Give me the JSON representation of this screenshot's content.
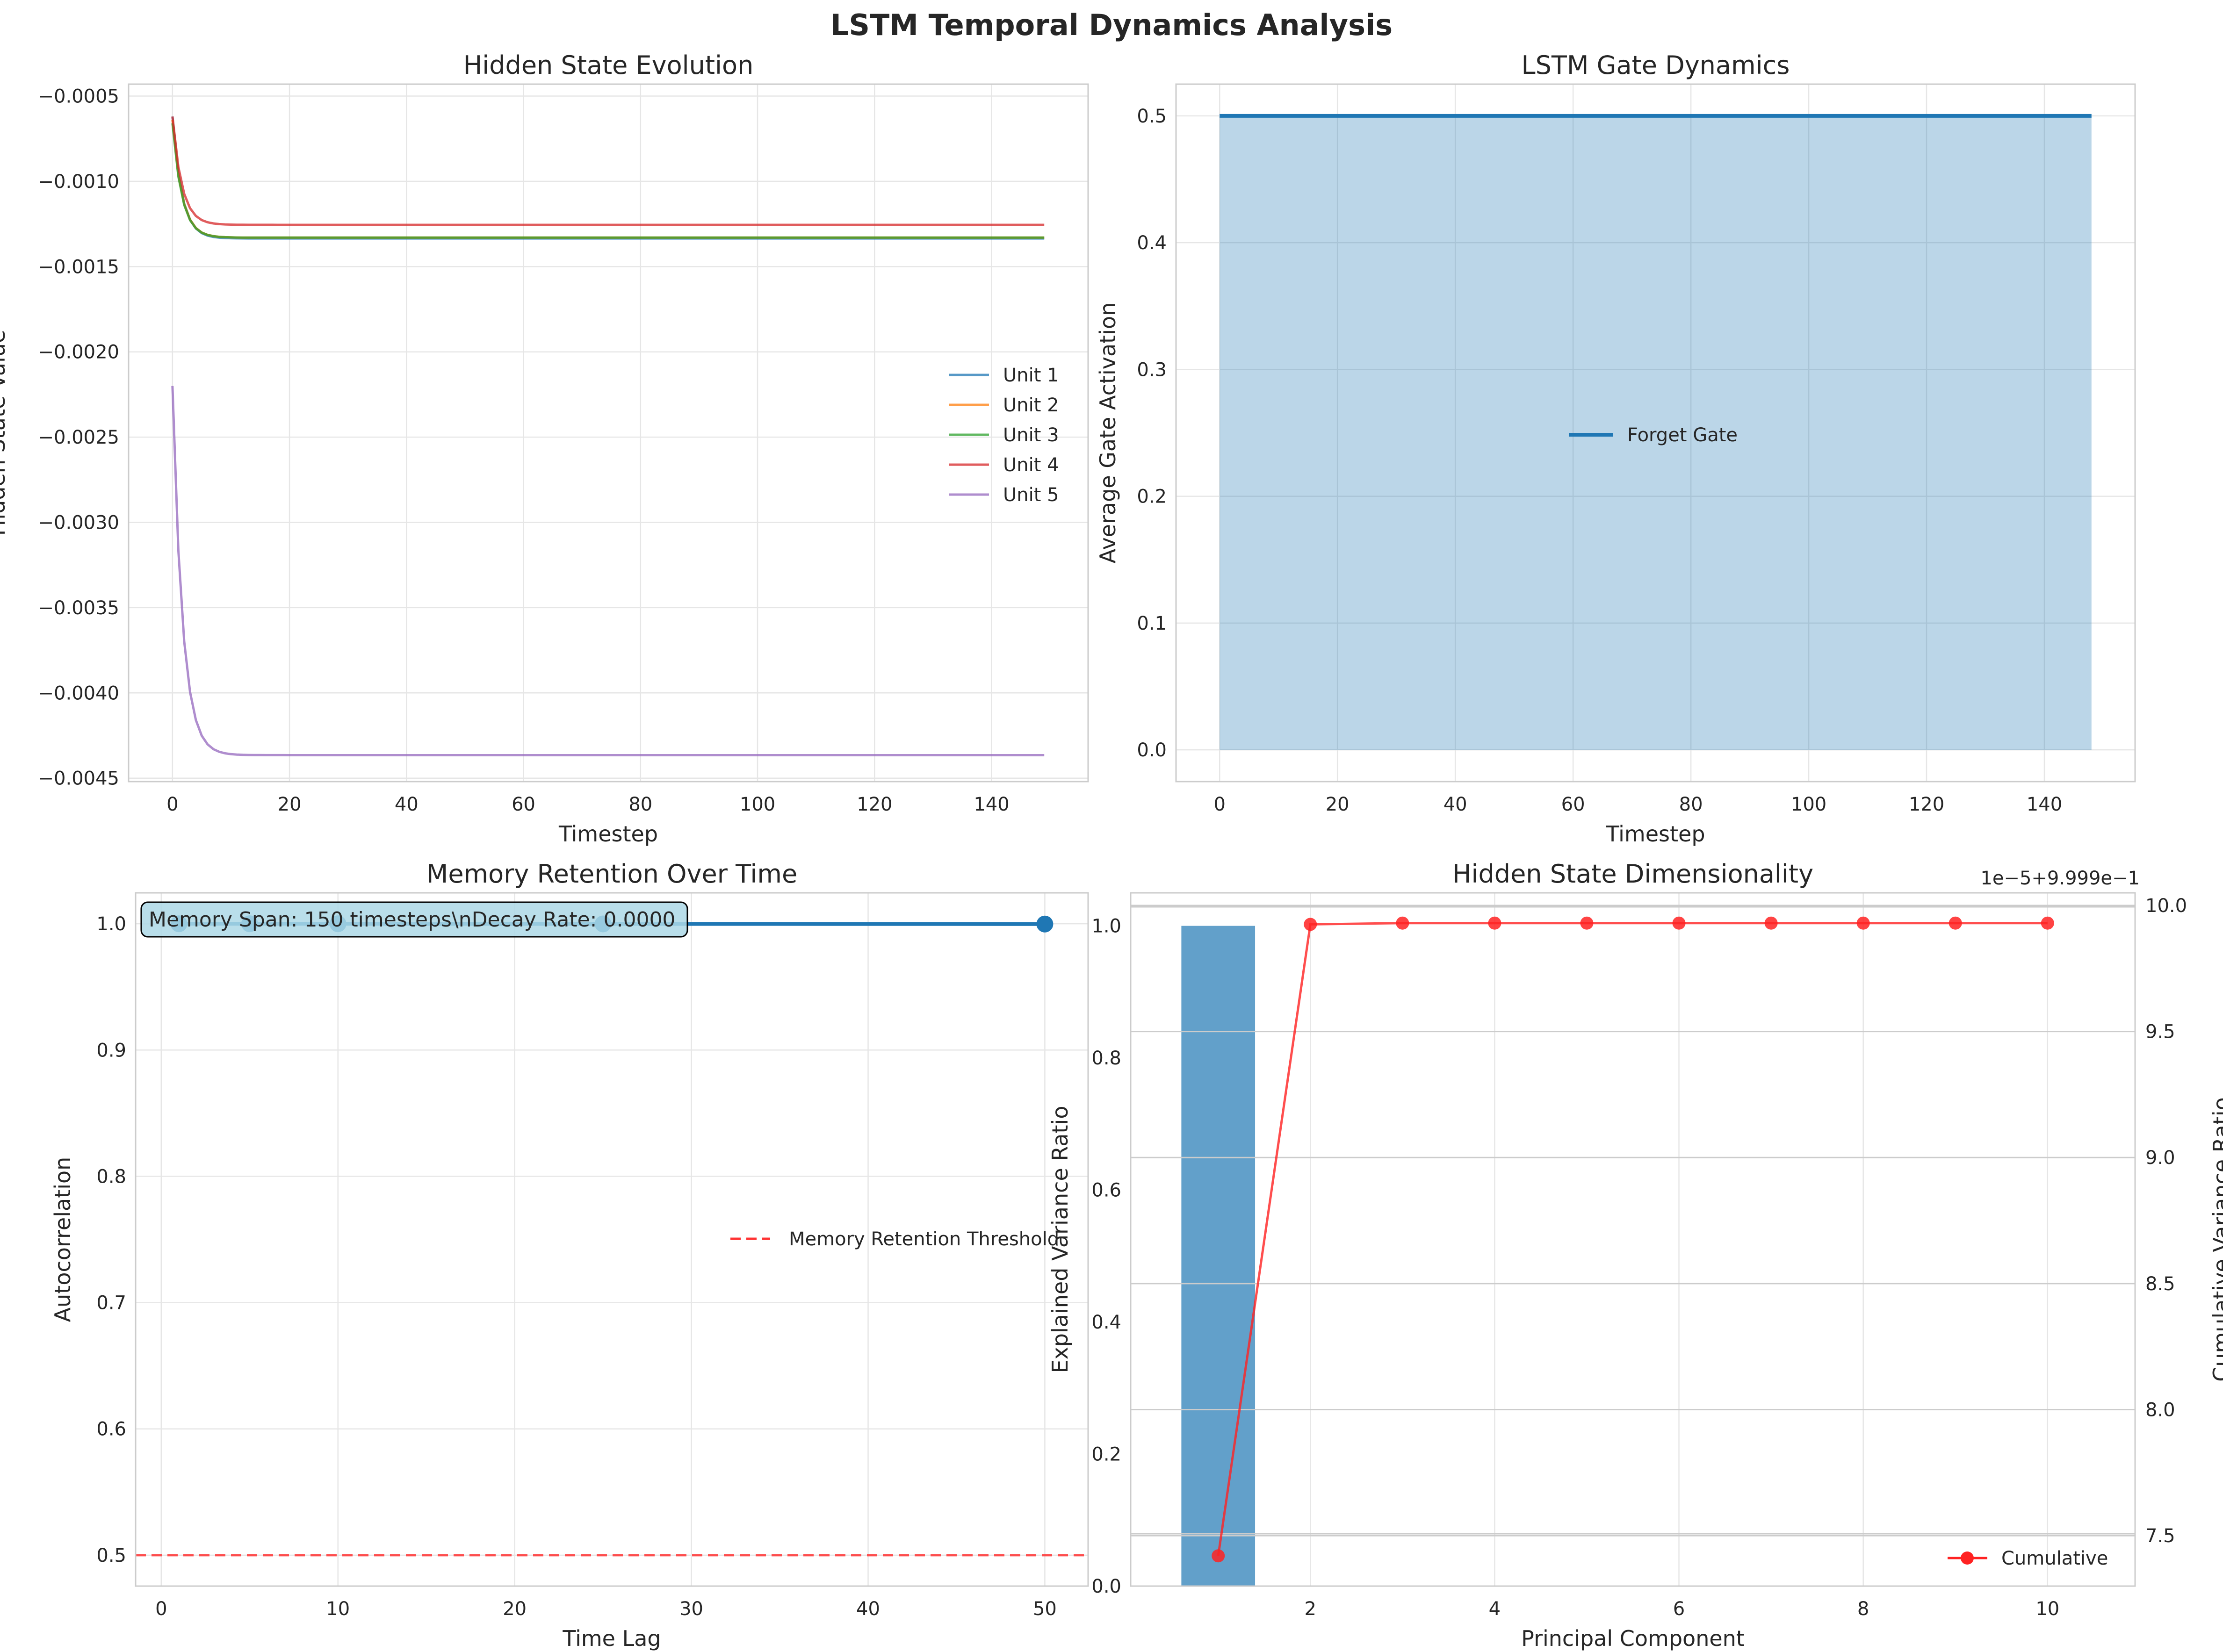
{
  "figure": {
    "suptitle": "LSTM Temporal Dynamics Analysis"
  },
  "chart_data": [
    {
      "type": "line",
      "title": "Hidden State Evolution",
      "xlabel": "Timestep",
      "ylabel": "Hidden State Value",
      "xlim": [
        -7.5,
        156.5
      ],
      "ylim": [
        -0.00452,
        -0.00043
      ],
      "x_ticks": [
        "0",
        "20",
        "40",
        "60",
        "80",
        "100",
        "120",
        "140"
      ],
      "y_ticks": [
        "−0.0005",
        "−0.0010",
        "−0.0015",
        "−0.0020",
        "−0.0025",
        "−0.0030",
        "−0.0035",
        "−0.0040",
        "−0.0045"
      ],
      "timesteps": 150,
      "series": [
        {
          "name": "Unit 1",
          "color": "#1f77b4",
          "start": -0.00062,
          "end": -0.001335,
          "decay_tau": 1.6
        },
        {
          "name": "Unit 2",
          "color": "#ff7f0e",
          "start": -0.00064,
          "end": -0.00133,
          "decay_tau": 1.6
        },
        {
          "name": "Unit 3",
          "color": "#2ca02c",
          "start": -0.00066,
          "end": -0.00133,
          "decay_tau": 1.6
        },
        {
          "name": "Unit 4",
          "color": "#d62728",
          "start": -0.00062,
          "end": -0.001255,
          "decay_tau": 1.6
        },
        {
          "name": "Unit 5",
          "color": "#9467bd",
          "start": -0.0022,
          "end": -0.004365,
          "decay_tau": 1.7
        }
      ],
      "legend": "center-right"
    },
    {
      "type": "area",
      "title": "LSTM Gate Dynamics",
      "xlabel": "Timestep",
      "ylabel": "Average Gate Activation",
      "xlim": [
        -7.4,
        155.4
      ],
      "ylim": [
        -0.025,
        0.525
      ],
      "x_ticks": [
        "0",
        "20",
        "40",
        "60",
        "80",
        "100",
        "120",
        "140"
      ],
      "y_ticks": [
        "0.0",
        "0.1",
        "0.2",
        "0.3",
        "0.4",
        "0.5"
      ],
      "series": [
        {
          "name": "Forget Gate",
          "color": "#1f77b4",
          "x_range": [
            0,
            148
          ],
          "value": 0.5
        }
      ],
      "legend": "center"
    },
    {
      "type": "line",
      "title": "Memory Retention Over Time",
      "xlabel": "Time Lag",
      "ylabel": "Autocorrelation",
      "xlim": [
        -1.45,
        52.45
      ],
      "ylim": [
        0.4755,
        1.0245
      ],
      "x_ticks": [
        "0",
        "10",
        "20",
        "30",
        "40",
        "50"
      ],
      "y_ticks": [
        "0.5",
        "0.6",
        "0.7",
        "0.8",
        "0.9",
        "1.0"
      ],
      "series": [
        {
          "name": "Autocorrelation",
          "color": "#1f77b4",
          "x": [
            1,
            5,
            10,
            25,
            50
          ],
          "y": [
            1.0,
            1.0,
            1.0,
            0.9999,
            0.9998
          ]
        }
      ],
      "threshold": {
        "name": "Memory Retention Threshold",
        "value": 0.5,
        "color": "#ff3333"
      },
      "annotation": "Memory Span: 150 timesteps\\nDecay Rate: 0.0000",
      "legend": "center-right"
    },
    {
      "type": "bar",
      "title": "Hidden State Dimensionality",
      "xlabel": "Principal Component",
      "ylabel": "Explained Variance Ratio",
      "ylabel_right": "Cumulative Variance Ratio",
      "offset_text": "1e−5+9.999e−1",
      "xlim": [
        0.05,
        10.95
      ],
      "ylim": [
        0.0,
        1.05
      ],
      "y2lim": [
        7.3,
        10.05
      ],
      "x_ticks": [
        "2",
        "4",
        "6",
        "8",
        "10"
      ],
      "y_ticks": [
        "0.0",
        "0.2",
        "0.4",
        "0.6",
        "0.8",
        "1.0"
      ],
      "y2_ticks": [
        "7.5",
        "8.0",
        "8.5",
        "9.0",
        "9.5",
        "10.0"
      ],
      "bars": {
        "categories": [
          1,
          2,
          3,
          4,
          5,
          6,
          7,
          8,
          9,
          10
        ],
        "values": [
          1.0,
          0,
          0,
          0,
          0,
          0,
          0,
          0,
          0,
          0
        ],
        "color": "#1f77b4"
      },
      "cumulative": {
        "name": "Cumulative",
        "color": "#ff2222",
        "x": [
          1,
          2,
          3,
          4,
          5,
          6,
          7,
          8,
          9,
          10
        ],
        "y": [
          7.42,
          9.925,
          9.93,
          9.93,
          9.93,
          9.93,
          9.93,
          9.93,
          9.93,
          9.93
        ]
      },
      "legend": "bottom-right"
    }
  ]
}
